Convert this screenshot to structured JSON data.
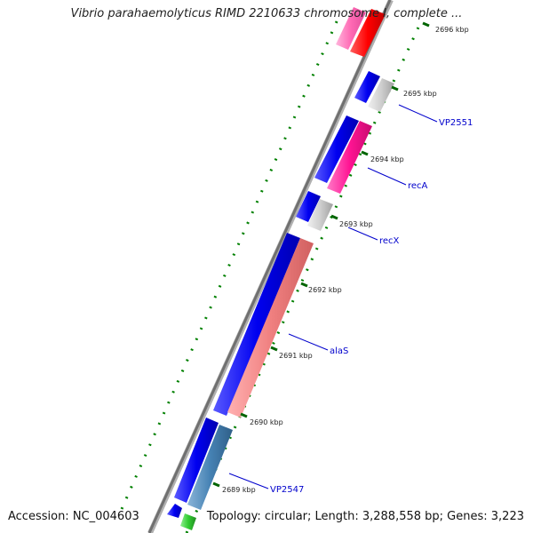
{
  "title": "Vibrio parahaemolyticus RIMD 2210633 chromosome I, complete ...",
  "footer": {
    "accession": "Accession: NC_004603",
    "summary": "Topology: circular; Length: 3,288,558 bp; Genes: 3,223"
  },
  "colors": {
    "backbone": "#808080",
    "dotted_ring": "#008000",
    "tick": "#006400",
    "label_line": "#0000cc",
    "forward_genes": "#0000ee",
    "rna_or_other": "#ff1493",
    "hypothetical": "#c8c8c8",
    "alaS": "#f08080",
    "VP2547_gene": "#4682b4",
    "green_gene": "#32cd32",
    "red_gene": "#ff0000",
    "pink_gene": "#ff69b4"
  },
  "ticks": [
    {
      "label": "2689 kbp"
    },
    {
      "label": "2690 kbp"
    },
    {
      "label": "2691 kbp"
    },
    {
      "label": "2692 kbp"
    },
    {
      "label": "2693 kbp"
    },
    {
      "label": "2694 kbp"
    },
    {
      "label": "2695 kbp"
    },
    {
      "label": "2696 kbp"
    }
  ],
  "gene_labels": [
    {
      "name": "VP2547"
    },
    {
      "name": "alaS"
    },
    {
      "name": "recX"
    },
    {
      "name": "recA"
    },
    {
      "name": "VP2551"
    }
  ]
}
